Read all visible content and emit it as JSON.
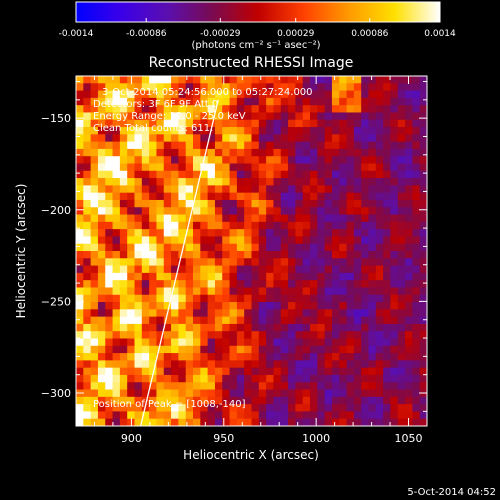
{
  "chart_data": {
    "type": "heatmap",
    "title": "Reconstructed RHESSI Image",
    "xlabel": "Heliocentric X (arcsec)",
    "ylabel": "Heliocentric Y (arcsec)",
    "xlim": [
      870,
      1060
    ],
    "ylim": [
      -318,
      -127
    ],
    "x_ticks": [
      900,
      950,
      1000,
      1050
    ],
    "y_ticks": [
      -150,
      -200,
      -250,
      -300
    ],
    "colorbar": {
      "min": -0.0014,
      "max": 0.0014,
      "tick_values": [
        -0.0014,
        -0.00086,
        -0.00029,
        0.00029,
        0.00086,
        0.0014
      ],
      "tick_labels": [
        "-0.0014",
        "-0.00086",
        "-0.00029",
        "0.00029",
        "0.00086",
        "0.0014"
      ],
      "units": "(photons cm⁻² s⁻¹ asec⁻²)",
      "stops": [
        "#0000ff",
        "#3b00e8",
        "#5a0fb0",
        "#7a0a50",
        "#c00000",
        "#ff4000",
        "#ff9a00",
        "#ffe000",
        "#ffffff"
      ]
    },
    "limb_line": [
      [
        905,
        -318
      ],
      [
        947,
        -140
      ]
    ],
    "peak": [
      1008,
      -140
    ],
    "grid": false,
    "annotations": {
      "time": "3-Oct-2014 05:24:56.000 to 05:27:24.000",
      "detectors": "Detectors: 3F 6F 9F  Att 0",
      "energy": "Energy Range: 12.0 - 25.0 keV",
      "method": "Clean    Total counts: 611.",
      "peak": "Position of Peak = [1008,-140]"
    },
    "footer_date": "5-Oct-2014 04:52"
  }
}
